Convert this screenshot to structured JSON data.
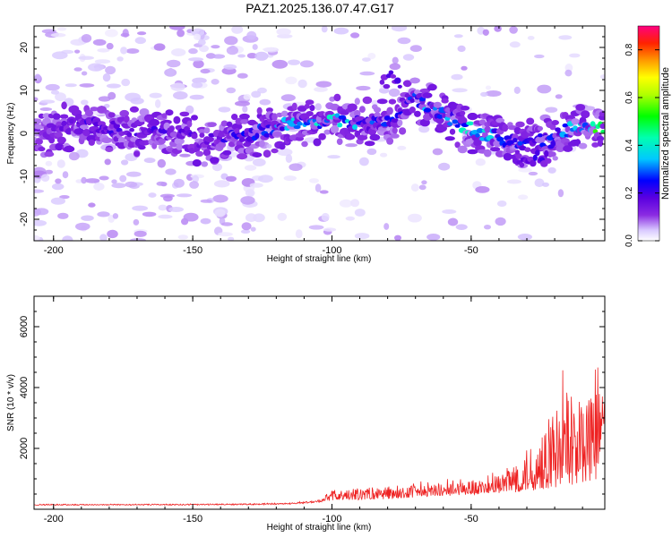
{
  "title": "PAZ1.2025.136.07.47.G17",
  "chart_data": [
    {
      "type": "heatmap",
      "xlabel": "Height of straight line (km)",
      "ylabel": "Frequency (Hz)",
      "xlim": [
        -207,
        -2
      ],
      "ylim": [
        -25,
        25
      ],
      "xticks": [
        -200,
        -150,
        -100,
        -50
      ],
      "yticks": [
        -20,
        -10,
        0,
        10,
        20
      ],
      "colorbar": {
        "label": "Normalized spectral amplitude",
        "range": [
          0,
          0.9
        ],
        "ticks": [
          "0.0",
          "0.2",
          "0.4",
          "0.6",
          "0.8"
        ]
      },
      "ridge": {
        "x": [
          -207,
          -190,
          -175,
          -160,
          -145,
          -130,
          -115,
          -100,
          -85,
          -75,
          -70,
          -60,
          -50,
          -40,
          -30,
          -20,
          -10,
          -2
        ],
        "freq": [
          -1,
          2,
          1,
          0,
          -2,
          0,
          2,
          3,
          2,
          5,
          8,
          4,
          1,
          -1,
          -3,
          0,
          2,
          1
        ],
        "amplitude": [
          0.1,
          0.2,
          0.2,
          0.2,
          0.18,
          0.25,
          0.35,
          0.42,
          0.3,
          0.25,
          0.35,
          0.3,
          0.45,
          0.35,
          0.25,
          0.3,
          0.45,
          0.65
        ]
      },
      "secondary_branch": {
        "x": [
          -82,
          -78,
          -75
        ],
        "freq": [
          12,
          13,
          11
        ]
      },
      "lower_branch": {
        "x": [
          -35,
          -30,
          -25,
          -20
        ],
        "freq": [
          -5,
          -8,
          -6,
          -4
        ]
      }
    },
    {
      "type": "line",
      "xlabel": "Height of straight line (km)",
      "ylabel": "SNR (10 * v/v)",
      "xlim": [
        -207,
        -2
      ],
      "ylim": [
        0,
        7000
      ],
      "xticks": [
        -200,
        -150,
        -100,
        -50
      ],
      "yticks": [
        2000,
        4000,
        6000
      ],
      "series": [
        {
          "color": "#ee2222",
          "x": [
            -207,
            -180,
            -150,
            -130,
            -115,
            -105,
            -100,
            -90,
            -80,
            -70,
            -60,
            -50,
            -45,
            -40,
            -35,
            -30,
            -25,
            -20,
            -15,
            -10,
            -5,
            -2
          ],
          "amplitude": [
            150,
            150,
            160,
            170,
            200,
            300,
            600,
            700,
            750,
            800,
            850,
            950,
            1000,
            1100,
            1600,
            2000,
            2600,
            3300,
            4200,
            3500,
            4000,
            3600
          ],
          "baseline": [
            150,
            150,
            150,
            160,
            180,
            230,
            300,
            300,
            350,
            400,
            450,
            500,
            500,
            550,
            550,
            600,
            650,
            700,
            800,
            900,
            1000,
            2900
          ]
        }
      ]
    }
  ]
}
